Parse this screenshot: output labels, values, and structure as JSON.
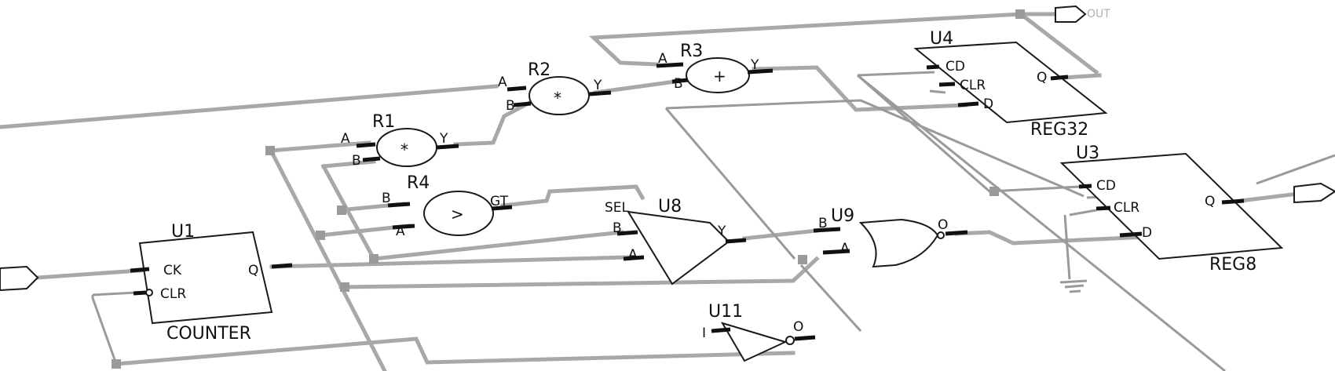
{
  "components": {
    "u1": {
      "ref": "U1",
      "type": "COUNTER",
      "pins": {
        "ck": "CK",
        "clr": "CLR",
        "q": "Q"
      }
    },
    "u3": {
      "ref": "U3",
      "type": "REG8",
      "pins": {
        "cd": "CD",
        "clr": "CLR",
        "d": "D",
        "q": "Q"
      }
    },
    "u4": {
      "ref": "U4",
      "type": "REG32",
      "pins": {
        "cd": "CD",
        "clr": "CLR",
        "d": "D",
        "q": "Q"
      }
    },
    "u8": {
      "ref": "U8",
      "pins": {
        "sel": "SEL",
        "b": "B",
        "a": "A",
        "y": "Y"
      }
    },
    "u9": {
      "ref": "U9",
      "pins": {
        "b": "B",
        "a": "A",
        "o": "O"
      }
    },
    "u11": {
      "ref": "U11",
      "pins": {
        "i": "I",
        "o": "O"
      }
    },
    "r1": {
      "ref": "R1",
      "op": "*",
      "pins": {
        "a": "A",
        "b": "B",
        "y": "Y"
      }
    },
    "r2": {
      "ref": "R2",
      "op": "*",
      "pins": {
        "a": "A",
        "b": "B",
        "y": "Y"
      }
    },
    "r3": {
      "ref": "R3",
      "op": "+",
      "pins": {
        "a": "A",
        "b": "B",
        "y": "Y"
      }
    },
    "r4": {
      "ref": "R4",
      "op": ">",
      "pins": {
        "b": "B",
        "a": "A",
        "gt": "GT"
      }
    }
  },
  "ports": {
    "out": "OUT"
  }
}
